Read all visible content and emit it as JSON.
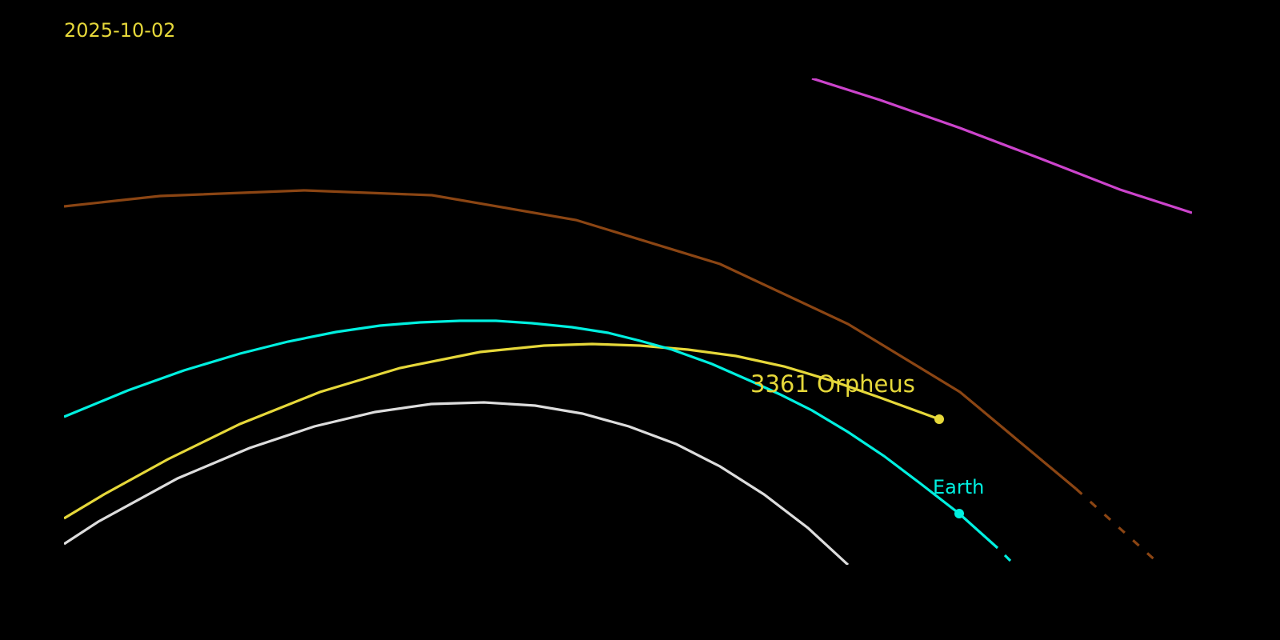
{
  "date_label": "2025-10-02",
  "bodies": [
    {
      "name": "3361 Orpheus",
      "color": "#e6d83a"
    },
    {
      "name": "Earth",
      "color": "#00f0e0"
    }
  ],
  "orbit_colors": {
    "outer_magenta": "#cc44cc",
    "brown": "#8b4513",
    "earth": "#00f0e0",
    "orpheus": "#e6d83a",
    "inner_white": "#dddddd"
  }
}
